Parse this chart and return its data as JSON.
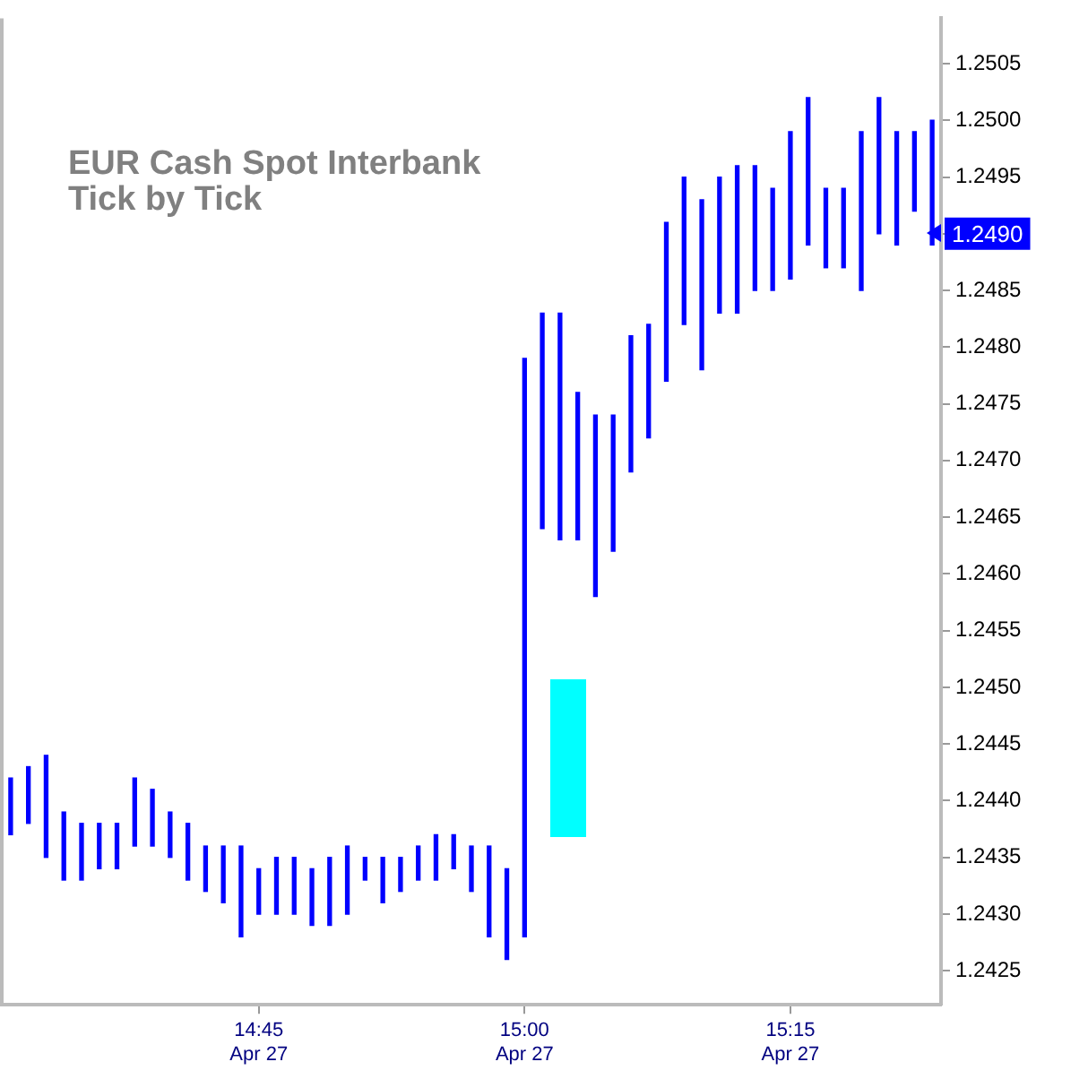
{
  "chart_data": {
    "type": "bar",
    "title": "EUR Cash Spot Interbank",
    "subtitle": "Tick by Tick",
    "categories": [
      null,
      null,
      null,
      null,
      null,
      null,
      null,
      null,
      null,
      null,
      null,
      null,
      null,
      null,
      "14:45\nApr 27",
      null,
      null,
      null,
      null,
      null,
      null,
      null,
      null,
      null,
      null,
      null,
      null,
      null,
      null,
      "15:00\nApr 27",
      null,
      null,
      null,
      null,
      null,
      null,
      null,
      null,
      null,
      null,
      null,
      null,
      null,
      null,
      "15:15\nApr 27",
      null,
      null,
      null,
      null,
      null,
      null,
      null,
      null
    ],
    "base": [
      1.2437,
      1.2438,
      1.2435,
      1.2433,
      1.2433,
      1.2434,
      1.2434,
      1.2436,
      1.2436,
      1.2435,
      1.2433,
      1.2432,
      1.2431,
      1.2428,
      1.243,
      1.243,
      1.243,
      1.2429,
      1.2429,
      1.243,
      1.2433,
      1.2431,
      1.2432,
      1.2433,
      1.2433,
      1.2434,
      1.2432,
      1.2428,
      1.2426,
      1.2428,
      1.2464,
      1.2463,
      1.2463,
      1.2458,
      1.2462,
      1.2469,
      1.2472,
      1.2477,
      1.2482,
      1.2478,
      1.2483,
      1.2483,
      1.2485,
      1.2485,
      1.2486,
      1.2489,
      1.2487,
      1.2487,
      1.2485,
      1.249,
      1.2489,
      1.2492,
      1.2489
    ],
    "values": [
      0.0005,
      0.0005,
      0.0009,
      0.0006,
      0.0005,
      0.0004,
      0.0004,
      0.0006,
      0.0005,
      0.0004,
      0.0005,
      0.0004,
      0.0005,
      0.0008,
      0.0004,
      0.0005,
      0.0005,
      0.0005,
      0.0006,
      0.0006,
      0.0002,
      0.0004,
      0.0003,
      0.0003,
      0.0004,
      0.0003,
      0.0004,
      0.0008,
      0.0008,
      0.0051,
      0.0019,
      0.002,
      0.0013,
      0.0016,
      0.0012,
      0.0012,
      0.001,
      0.0014,
      0.0013,
      0.0015,
      0.0012,
      0.0013,
      0.0011,
      0.0009,
      0.0013,
      0.0013,
      0.0007,
      0.0007,
      0.0014,
      0.0012,
      0.001,
      0.0007,
      0.0011
    ],
    "color": "#0000ff",
    "ylim": [
      1.2422,
      1.2509
    ],
    "yticks": [
      {
        "value": 1.2425,
        "label": "1.2425"
      },
      {
        "value": 1.243,
        "label": "1.2430"
      },
      {
        "value": 1.2435,
        "label": "1.2435"
      },
      {
        "value": 1.244,
        "label": "1.2440"
      },
      {
        "value": 1.2445,
        "label": "1.2445"
      },
      {
        "value": 1.245,
        "label": "1.2450"
      },
      {
        "value": 1.2455,
        "label": "1.2455"
      },
      {
        "value": 1.246,
        "label": "1.2460"
      },
      {
        "value": 1.2465,
        "label": "1.2465"
      },
      {
        "value": 1.247,
        "label": "1.2470"
      },
      {
        "value": 1.2475,
        "label": "1.2475"
      },
      {
        "value": 1.248,
        "label": "1.2480"
      },
      {
        "value": 1.2485,
        "label": "1.2485"
      },
      {
        "value": 1.249,
        "label": null
      },
      {
        "value": 1.2495,
        "label": "1.2495"
      },
      {
        "value": 1.25,
        "label": "1.2500"
      },
      {
        "value": 1.2505,
        "label": "1.2505"
      }
    ],
    "annotations": [
      "1.2490"
    ],
    "grid": false,
    "legend": false
  }
}
